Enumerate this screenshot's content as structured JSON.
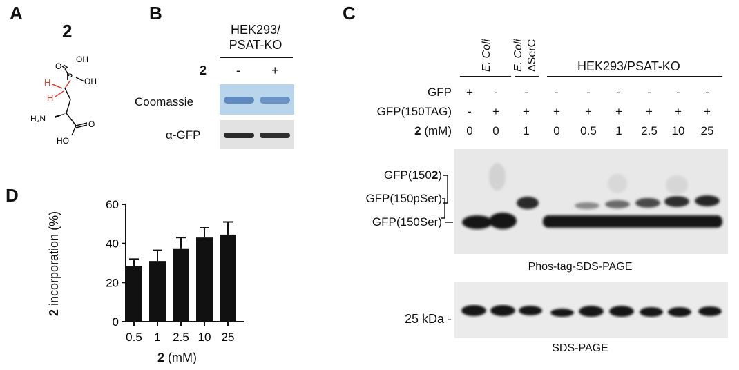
{
  "panelA": {
    "letter": "A",
    "compound_number": "2",
    "atoms": {
      "oh1": "OH",
      "p": "P",
      "o_dbl": "O",
      "oh2": "OH",
      "h1": "H",
      "h2": "H",
      "c": "C",
      "nh2": "H₂N",
      "ho": "HO",
      "o": "O"
    },
    "colors": {
      "highlight": "#e0402a",
      "bond": "#111111"
    }
  },
  "panelB": {
    "letter": "B",
    "header_line1": "HEK293/",
    "header_line2": "PSAT-KO",
    "row_label_2": "2",
    "lanes": [
      "-",
      "+"
    ],
    "row_coomassie": "Coomassie",
    "row_agfp": "α-GFP",
    "colors": {
      "coomassie_bg": "#b8d4ea",
      "coomassie_band": "#5b86bd"
    }
  },
  "panelC": {
    "letter": "C",
    "header_ecoli": "E. Coli",
    "header_ecoli2": "E. Coli",
    "header_serc": "ΔSerC",
    "header_hek": "HEK293/PSAT-KO",
    "rows": {
      "gfp_label": "GFP",
      "gfp_tag_label": "GFP(150TAG)",
      "conc_label_bold": "2",
      "conc_label_rest": " (mM)",
      "gfp": [
        "+",
        "-",
        "-",
        "-",
        "-",
        "-",
        "-",
        "-",
        "-"
      ],
      "gfp_tag": [
        "-",
        "+",
        "+",
        "+",
        "+",
        "+",
        "+",
        "+",
        "+"
      ],
      "conc": [
        "0",
        "0",
        "1",
        "0",
        "0.5",
        "1",
        "2.5",
        "10",
        "25"
      ]
    },
    "band_labels": {
      "b1_pre": "GFP(150",
      "b1_bold": "2",
      "b1_post": ")",
      "b2": "GFP(150pSer)",
      "b3": "GFP(150Ser)"
    },
    "phos_caption": "Phos-tag-SDS-PAGE",
    "sds_label": "25 kDa -",
    "sds_caption": "SDS-PAGE"
  },
  "panelD": {
    "letter": "D",
    "ylabel_bold": "2",
    "ylabel_rest": " incorporation (%)",
    "xlabel_bold": "2",
    "xlabel_rest": " (mM)"
  },
  "chart_data": {
    "type": "bar",
    "categories": [
      "0.5",
      "1",
      "2.5",
      "10",
      "25"
    ],
    "values": [
      28.5,
      31,
      37.5,
      43,
      44.5
    ],
    "errors": [
      3.5,
      5.5,
      5.5,
      5,
      6.5
    ],
    "title": "",
    "xlabel": "2 (mM)",
    "ylabel": "2 incorporation (%)",
    "ylim": [
      0,
      60
    ],
    "yticks": [
      0,
      20,
      40,
      60
    ],
    "bar_color": "#111111",
    "grid": false
  }
}
